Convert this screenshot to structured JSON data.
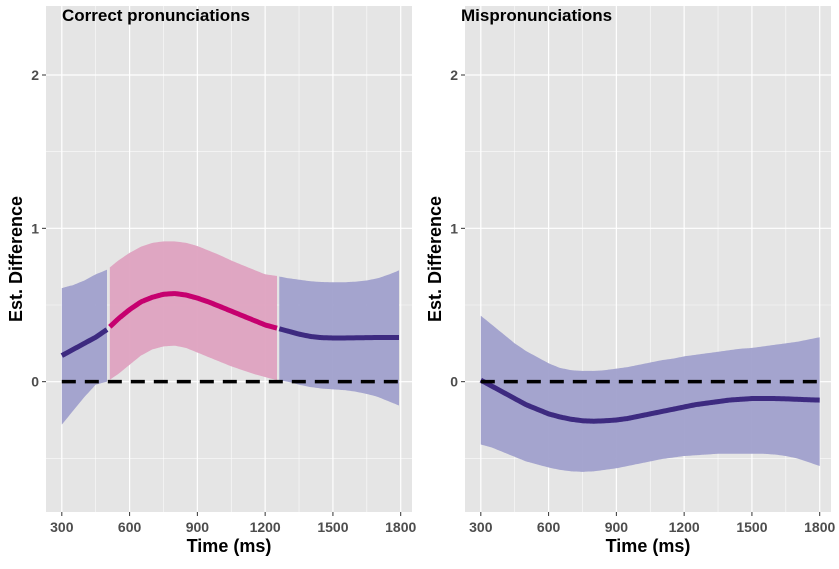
{
  "chart_data": [
    {
      "type": "line",
      "title": "Correct pronunciations",
      "xlabel": "Time (ms)",
      "ylabel": "Est. Difference",
      "xlim": [
        230,
        1850
      ],
      "ylim": [
        -0.85,
        2.45
      ],
      "xticks": [
        "300",
        "600",
        "900",
        "1200",
        "1500",
        "1800"
      ],
      "yticks": [
        "0",
        "1",
        "2"
      ],
      "grid": true,
      "legend": "none",
      "reference_line": {
        "y": 0,
        "style": "dashed",
        "color": "#000000"
      },
      "colors": {
        "ribbon_default": "#a0a0cc",
        "line_default": "#3d2a80",
        "ribbon_highlight": "#dea2c0",
        "line_highlight": "#c6006f"
      },
      "series": [
        {
          "x": [
            300,
            350,
            400,
            450,
            500,
            550,
            600,
            650,
            700,
            750,
            800,
            850,
            900,
            950,
            1000,
            1050,
            1100,
            1150,
            1200,
            1250,
            1300,
            1350,
            1400,
            1450,
            1500,
            1550,
            1600,
            1650,
            1700,
            1750,
            1800
          ],
          "y": [
            0.17,
            0.21,
            0.25,
            0.29,
            0.34,
            0.41,
            0.47,
            0.52,
            0.55,
            0.57,
            0.575,
            0.565,
            0.545,
            0.52,
            0.49,
            0.46,
            0.43,
            0.4,
            0.37,
            0.35,
            0.33,
            0.31,
            0.295,
            0.287,
            0.285,
            0.285,
            0.286,
            0.287,
            0.288,
            0.288,
            0.288
          ],
          "lower": [
            -0.28,
            -0.19,
            -0.1,
            -0.02,
            0.0,
            0.05,
            0.11,
            0.17,
            0.21,
            0.23,
            0.235,
            0.22,
            0.19,
            0.16,
            0.13,
            0.1,
            0.075,
            0.05,
            0.03,
            0.01,
            0.0,
            -0.02,
            -0.035,
            -0.045,
            -0.05,
            -0.055,
            -0.065,
            -0.08,
            -0.1,
            -0.13,
            -0.16
          ],
          "upper": [
            0.61,
            0.63,
            0.66,
            0.7,
            0.73,
            0.79,
            0.84,
            0.88,
            0.905,
            0.915,
            0.915,
            0.905,
            0.885,
            0.855,
            0.825,
            0.79,
            0.76,
            0.73,
            0.7,
            0.69,
            0.675,
            0.665,
            0.655,
            0.65,
            0.648,
            0.648,
            0.652,
            0.66,
            0.675,
            0.7,
            0.73
          ],
          "highlight_x_range": [
            510,
            1260
          ]
        }
      ]
    },
    {
      "type": "line",
      "title": "Mispronunciations",
      "xlabel": "Time (ms)",
      "ylabel": "Est. Difference",
      "xlim": [
        230,
        1850
      ],
      "ylim": [
        -0.85,
        2.45
      ],
      "xticks": [
        "300",
        "600",
        "900",
        "1200",
        "1500",
        "1800"
      ],
      "yticks": [
        "0",
        "1",
        "2"
      ],
      "grid": true,
      "legend": "none",
      "reference_line": {
        "y": 0,
        "style": "dashed",
        "color": "#000000"
      },
      "colors": {
        "ribbon_default": "#a0a0cc",
        "line_default": "#3d2a80"
      },
      "series": [
        {
          "x": [
            300,
            350,
            400,
            450,
            500,
            550,
            600,
            650,
            700,
            750,
            800,
            850,
            900,
            950,
            1000,
            1050,
            1100,
            1150,
            1200,
            1250,
            1300,
            1350,
            1400,
            1450,
            1500,
            1550,
            1600,
            1650,
            1700,
            1750,
            1800
          ],
          "y": [
            0.01,
            -0.03,
            -0.07,
            -0.11,
            -0.15,
            -0.18,
            -0.21,
            -0.23,
            -0.245,
            -0.255,
            -0.258,
            -0.255,
            -0.25,
            -0.24,
            -0.225,
            -0.21,
            -0.195,
            -0.18,
            -0.165,
            -0.15,
            -0.14,
            -0.13,
            -0.12,
            -0.115,
            -0.11,
            -0.11,
            -0.11,
            -0.112,
            -0.115,
            -0.118,
            -0.12
          ],
          "lower": [
            -0.41,
            -0.43,
            -0.46,
            -0.49,
            -0.52,
            -0.54,
            -0.56,
            -0.575,
            -0.585,
            -0.588,
            -0.585,
            -0.575,
            -0.565,
            -0.55,
            -0.535,
            -0.52,
            -0.505,
            -0.495,
            -0.485,
            -0.48,
            -0.475,
            -0.47,
            -0.47,
            -0.47,
            -0.47,
            -0.47,
            -0.475,
            -0.485,
            -0.5,
            -0.525,
            -0.55
          ],
          "upper": [
            0.43,
            0.37,
            0.31,
            0.25,
            0.2,
            0.16,
            0.12,
            0.09,
            0.075,
            0.07,
            0.07,
            0.075,
            0.085,
            0.095,
            0.11,
            0.125,
            0.14,
            0.15,
            0.165,
            0.175,
            0.185,
            0.195,
            0.205,
            0.215,
            0.22,
            0.23,
            0.24,
            0.25,
            0.26,
            0.275,
            0.29
          ]
        }
      ]
    }
  ]
}
